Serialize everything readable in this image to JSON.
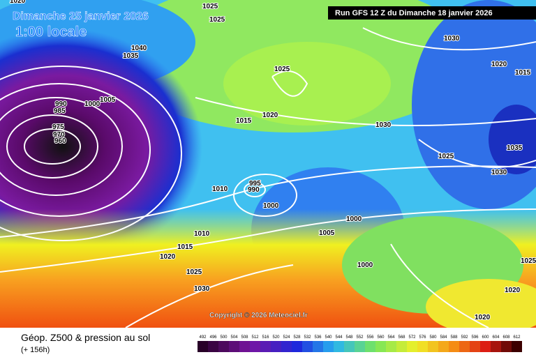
{
  "header": {
    "date": "Dimanche 25 janvier 2026",
    "time": "1:00 locale",
    "run": "Run GFS 12 Z du Dimanche 18 janvier 2026"
  },
  "isobar_labels": [
    1020,
    1025,
    1025,
    1040,
    1035,
    1025,
    1030,
    1020,
    1015,
    1005,
    1000,
    990,
    985,
    975,
    970,
    960,
    1020,
    1015,
    1030,
    1025,
    1035,
    1030,
    1010,
    995,
    990,
    1000,
    1005,
    1000,
    1010,
    1015,
    1020,
    1025,
    1030,
    1000,
    1020,
    1020,
    1025
  ],
  "copyright": "Copyright © 2026 Meteociel.fr",
  "legend": {
    "title": "Géop. Z500 & pression au sol",
    "lead": "(+ 156h)",
    "scale": [
      492,
      496,
      500,
      504,
      508,
      512,
      516,
      520,
      524,
      528,
      532,
      536,
      540,
      544,
      548,
      552,
      556,
      560,
      564,
      568,
      572,
      576,
      580,
      584,
      588,
      592,
      596,
      600,
      604,
      608,
      612
    ]
  }
}
